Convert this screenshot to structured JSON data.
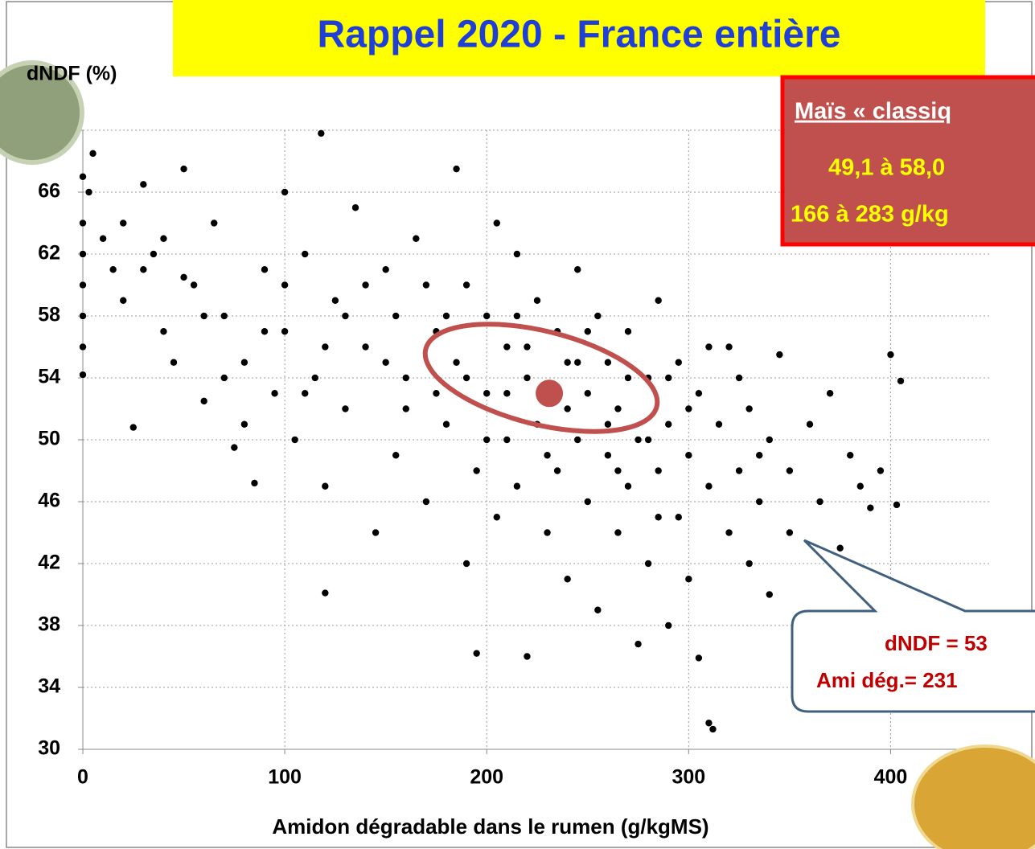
{
  "chart_data": {
    "type": "scatter",
    "title": "Rappel 2020 - France entière",
    "x_label": "Amidon dégradable dans le rumen (g/kgMS)",
    "y_label": "dNDF (%)",
    "xlim": [
      0,
      450
    ],
    "ylim": [
      30,
      70
    ],
    "xticks": [
      0,
      100,
      200,
      300,
      400
    ],
    "yticks": [
      30,
      34,
      38,
      42,
      46,
      50,
      54,
      58,
      62,
      66,
      70
    ],
    "grid": true,
    "color": "#000000",
    "series": [
      {
        "name": "Maïs",
        "color": "#000000",
        "x": [
          0,
          0,
          0,
          0,
          0,
          0,
          0,
          5,
          3,
          10,
          15,
          20,
          25,
          30,
          35,
          40,
          45,
          50,
          55,
          60,
          65,
          70,
          75,
          80,
          85,
          90,
          95,
          100,
          100,
          105,
          110,
          115,
          118,
          120,
          120,
          125,
          130,
          135,
          140,
          145,
          150,
          155,
          160,
          165,
          170,
          175,
          180,
          185,
          185,
          190,
          190,
          195,
          195,
          200,
          200,
          205,
          205,
          210,
          210,
          215,
          215,
          220,
          220,
          225,
          225,
          230,
          230,
          235,
          235,
          240,
          240,
          245,
          245,
          250,
          250,
          255,
          255,
          260,
          260,
          265,
          265,
          270,
          270,
          275,
          275,
          280,
          280,
          285,
          285,
          290,
          290,
          295,
          295,
          300,
          300,
          305,
          305,
          310,
          310,
          312,
          315,
          320,
          320,
          325,
          330,
          330,
          335,
          340,
          340,
          345,
          350,
          350,
          355,
          360,
          365,
          370,
          375,
          380,
          385,
          390,
          395,
          400,
          403,
          405,
          70,
          80,
          90,
          110,
          130,
          150,
          170,
          50,
          30,
          180,
          240,
          260,
          200,
          220,
          250,
          280,
          300,
          190,
          210,
          230,
          270,
          160,
          140,
          120,
          100,
          60,
          40,
          20,
          325,
          335,
          310,
          290,
          215,
          245,
          265,
          285,
          175,
          155
        ],
        "values": [
          67,
          64,
          62,
          60,
          58,
          56,
          54.2,
          68.5,
          66,
          63,
          61,
          59,
          50.8,
          66.5,
          62,
          57,
          55,
          67.5,
          60,
          52.5,
          64,
          58,
          49.5,
          55,
          47.2,
          61,
          53,
          66,
          57,
          50,
          62,
          54,
          69.8,
          40.1,
          47,
          59,
          52,
          65,
          56,
          44,
          61,
          49,
          54,
          63,
          46,
          57,
          51,
          67.5,
          55,
          42,
          60,
          48,
          36.2,
          53,
          58,
          45,
          64,
          50,
          56,
          47,
          62,
          54,
          36,
          51,
          59,
          44,
          53,
          57,
          48,
          41,
          55,
          50,
          61,
          46,
          53,
          58,
          39,
          49,
          55,
          44,
          52,
          57,
          47,
          36.8,
          50,
          54,
          42,
          48,
          59,
          51,
          38,
          45,
          55,
          49,
          41,
          53,
          35.9,
          47,
          31.7,
          31.3,
          51,
          44,
          56,
          48,
          42,
          52,
          46,
          50,
          40,
          55.5,
          44,
          48,
          36.8,
          51,
          46,
          53,
          43,
          49,
          47,
          45.6,
          48,
          55.5,
          45.8,
          53.8,
          54,
          51,
          57,
          53,
          58,
          55,
          60,
          60.5,
          61,
          58,
          52,
          51,
          50,
          56,
          57,
          50,
          52,
          54,
          53,
          49,
          54,
          52,
          60,
          56,
          60,
          58,
          63,
          64,
          54,
          49,
          56,
          54,
          58,
          55,
          48,
          45,
          53,
          58
        ]
      }
    ],
    "mean_point": {
      "x": 231,
      "y": 53
    },
    "box_title": "Maïs « classiq",
    "box_line1": "49,1 à 58,0",
    "box_line2": "166 à 283 g/kg",
    "callout_line1": "dNDF = 53",
    "callout_line2": "Ami dég.= 231"
  }
}
